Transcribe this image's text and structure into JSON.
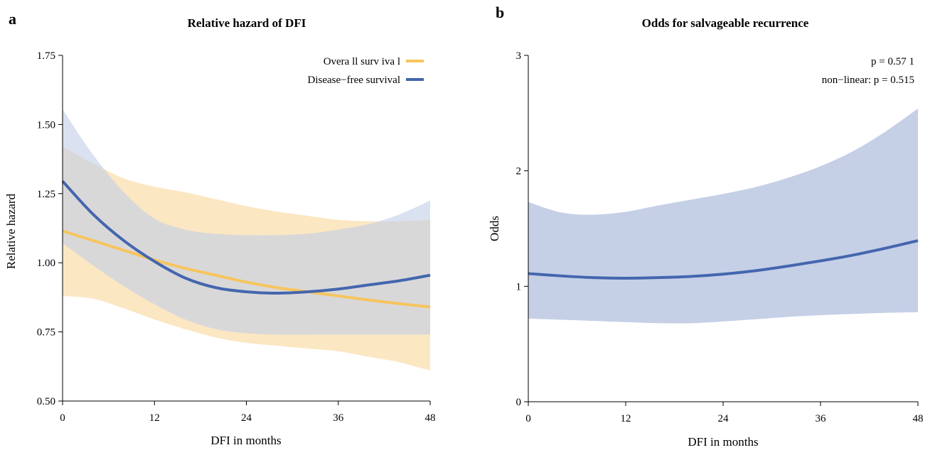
{
  "chart_data": [
    {
      "panel_letter": "a",
      "type": "line",
      "title": "Relative hazard of DFI",
      "xlabel": "DFI in months",
      "ylabel": "Relative hazard",
      "xlim": [
        0,
        48
      ],
      "ylim": [
        0.5,
        1.75
      ],
      "xticks": [
        0,
        12,
        24,
        36,
        48
      ],
      "xtick_labels": [
        "0",
        "12",
        "24",
        "36",
        "48"
      ],
      "yticks": [
        0.5,
        0.75,
        1.0,
        1.25,
        1.5,
        1.75
      ],
      "ytick_labels": [
        "0.50",
        "0.75",
        "1.00",
        "1.25",
        "1.50",
        "1.75"
      ],
      "grid": false,
      "legend_position": "top-right",
      "series": [
        {
          "name": "Overa ll surv iva l",
          "color": "#F7C55E",
          "band_color": "#FBE3B8",
          "x": [
            0,
            4,
            8,
            12,
            16,
            20,
            24,
            28,
            32,
            36,
            40,
            44,
            48
          ],
          "y": [
            1.115,
            1.08,
            1.045,
            1.01,
            0.98,
            0.955,
            0.93,
            0.91,
            0.895,
            0.88,
            0.865,
            0.852,
            0.84
          ],
          "lower": [
            0.88,
            0.87,
            0.835,
            0.795,
            0.76,
            0.73,
            0.71,
            0.7,
            0.69,
            0.68,
            0.66,
            0.64,
            0.61
          ],
          "upper": [
            1.42,
            1.36,
            1.305,
            1.275,
            1.255,
            1.23,
            1.205,
            1.185,
            1.17,
            1.155,
            1.15,
            1.15,
            1.155
          ]
        },
        {
          "name": "Disease−free survival",
          "color": "#4466AE",
          "band_color": "#C3CEE6",
          "x": [
            0,
            4,
            8,
            12,
            16,
            20,
            24,
            28,
            32,
            36,
            40,
            44,
            48
          ],
          "y": [
            1.295,
            1.175,
            1.08,
            1.005,
            0.945,
            0.91,
            0.895,
            0.89,
            0.895,
            0.905,
            0.92,
            0.935,
            0.955
          ],
          "lower": [
            1.07,
            0.99,
            0.915,
            0.85,
            0.795,
            0.76,
            0.745,
            0.74,
            0.74,
            0.74,
            0.74,
            0.74,
            0.74
          ],
          "upper": [
            1.555,
            1.39,
            1.255,
            1.16,
            1.12,
            1.105,
            1.1,
            1.1,
            1.105,
            1.12,
            1.14,
            1.175,
            1.225
          ]
        }
      ]
    },
    {
      "panel_letter": "b",
      "type": "line",
      "title": "Odds for salvageable recurrence",
      "xlabel": "DFI in months",
      "ylabel": "Odds",
      "xlim": [
        0,
        48
      ],
      "ylim": [
        0,
        3
      ],
      "xticks": [
        0,
        12,
        24,
        36,
        48
      ],
      "xtick_labels": [
        "0",
        "12",
        "24",
        "36",
        "48"
      ],
      "yticks": [
        0,
        1,
        2,
        3
      ],
      "ytick_labels": [
        "0",
        "1",
        "2",
        "3"
      ],
      "grid": false,
      "annotations": [
        "p = 0.57 1",
        "non−linear: p = 0.515"
      ],
      "series": [
        {
          "color": "#4466AE",
          "band_color": "#C5D0E7",
          "x": [
            0,
            4,
            8,
            12,
            16,
            20,
            24,
            28,
            32,
            36,
            40,
            44,
            48
          ],
          "y": [
            1.11,
            1.09,
            1.075,
            1.07,
            1.075,
            1.085,
            1.105,
            1.135,
            1.175,
            1.22,
            1.27,
            1.33,
            1.395
          ],
          "lower": [
            0.72,
            0.71,
            0.7,
            0.69,
            0.68,
            0.68,
            0.695,
            0.715,
            0.735,
            0.75,
            0.76,
            0.77,
            0.775
          ],
          "upper": [
            1.73,
            1.64,
            1.62,
            1.645,
            1.7,
            1.75,
            1.8,
            1.86,
            1.94,
            2.04,
            2.17,
            2.34,
            2.54
          ]
        }
      ]
    }
  ]
}
